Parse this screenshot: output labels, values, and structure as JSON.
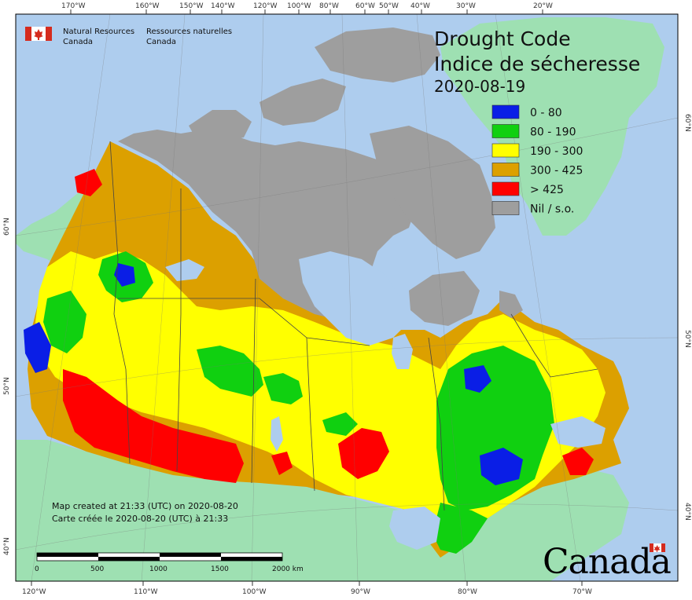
{
  "title": "Drought Code",
  "title_fr": "Indice de sécheresse",
  "date": "2020-08-19",
  "agency": {
    "en_line1": "Natural Resources",
    "en_line2": "Canada",
    "fr_line1": "Ressources naturelles",
    "fr_line2": "Canada"
  },
  "legend": [
    {
      "label": "0 - 80",
      "color": "#0a1ee6"
    },
    {
      "label": "80 - 190",
      "color": "#10d010"
    },
    {
      "label": "190 - 300",
      "color": "#ffff00"
    },
    {
      "label": "300 - 425",
      "color": "#dca000"
    },
    {
      "label": "> 425",
      "color": "#ff0000"
    },
    {
      "label": "Nil / s.o.",
      "color": "#9e9e9e"
    }
  ],
  "notes": {
    "created_en": "Map created at 21:33 (UTC) on 2020-08-20",
    "created_fr": "Carte créée le 2020-08-20 (UTC) à 21:33"
  },
  "scale_bar": {
    "labels": [
      "0",
      "500",
      "1000",
      "1500",
      "2000  km"
    ]
  },
  "top_ticks": [
    "170°W",
    "160°W",
    "150°W",
    "140°W",
    "120°W",
    "100°W",
    "80°W",
    "60°W",
    "50°W",
    "40°W",
    "30°W",
    "20°W"
  ],
  "bottom_ticks": [
    "120°W",
    "110°W",
    "100°W",
    "90°W",
    "80°W",
    "70°W"
  ],
  "left_ticks": [
    "60°N",
    "50°N",
    "40°N"
  ],
  "right_ticks": [
    "60°N",
    "50°N",
    "40°N"
  ],
  "wordmark": "Canada",
  "colors": {
    "water": "#aecdee",
    "land_outside": "#9ee0b2",
    "nil": "#9e9e9e",
    "flag_red": "#d52b1e"
  }
}
